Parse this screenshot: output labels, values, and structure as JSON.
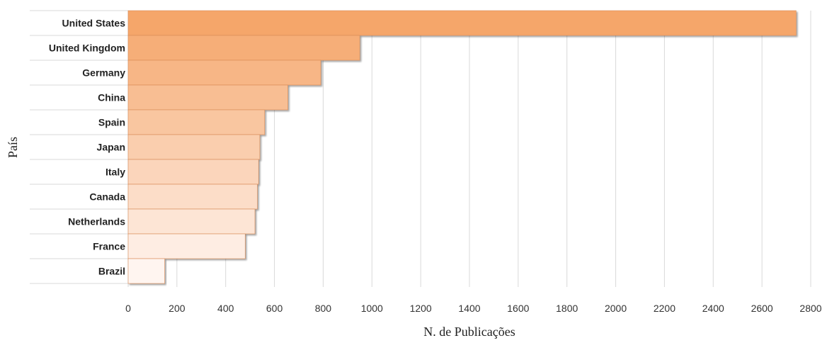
{
  "chart_data": {
    "type": "bar",
    "orientation": "horizontal",
    "categories": [
      "United States",
      "United Kingdom",
      "Germany",
      "China",
      "Spain",
      "Japan",
      "Italy",
      "Canada",
      "Netherlands",
      "France",
      "Brazil"
    ],
    "values": [
      2740,
      950,
      790,
      655,
      560,
      540,
      535,
      530,
      520,
      480,
      150
    ],
    "xlabel": "N. de Publicações",
    "ylabel": "País",
    "xlim": [
      0,
      2800
    ],
    "xticks": [
      "0",
      "200",
      "400",
      "600",
      "800",
      "1000",
      "1200",
      "1400",
      "1600",
      "1800",
      "2000",
      "2200",
      "2400",
      "2600",
      "2800"
    ],
    "grid": true,
    "colors": {
      "bar_dark": "#f5a66b",
      "bar_light": "#fff5f0",
      "grid": "#d9d9d9"
    }
  }
}
